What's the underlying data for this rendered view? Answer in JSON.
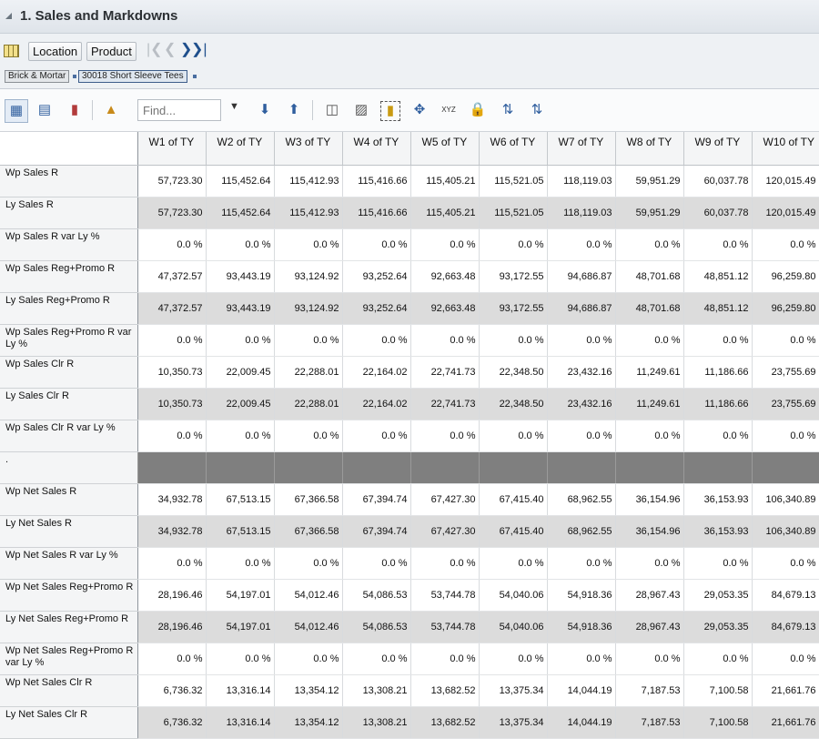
{
  "title": "1. Sales and Markdowns",
  "dimensions": {
    "location_label": "Location",
    "product_label": "Product"
  },
  "breadcrumbs": [
    "Brick & Mortar",
    "30018 Short Sleeve Tees"
  ],
  "find": {
    "placeholder": "Find..."
  },
  "columns": [
    "W1 of TY",
    "W2 of TY",
    "W3 of TY",
    "W4 of TY",
    "W5 of TY",
    "W6 of TY",
    "W7 of TY",
    "W8 of TY",
    "W9 of TY",
    "W10 of TY"
  ],
  "rows": [
    {
      "label": "Wp Sales R",
      "values": [
        "57,723.30",
        "115,452.64",
        "115,412.93",
        "115,416.66",
        "115,405.21",
        "115,521.05",
        "118,119.03",
        "59,951.29",
        "60,037.78",
        "120,015.49"
      ]
    },
    {
      "label": "Ly Sales R",
      "values": [
        "57,723.30",
        "115,452.64",
        "115,412.93",
        "115,416.66",
        "115,405.21",
        "115,521.05",
        "118,119.03",
        "59,951.29",
        "60,037.78",
        "120,015.49"
      ]
    },
    {
      "label": "Wp Sales R var Ly %",
      "values": [
        "0.0 %",
        "0.0 %",
        "0.0 %",
        "0.0 %",
        "0.0 %",
        "0.0 %",
        "0.0 %",
        "0.0 %",
        "0.0 %",
        "0.0 %"
      ]
    },
    {
      "label": "Wp Sales Reg+Promo R",
      "values": [
        "47,372.57",
        "93,443.19",
        "93,124.92",
        "93,252.64",
        "92,663.48",
        "93,172.55",
        "94,686.87",
        "48,701.68",
        "48,851.12",
        "96,259.80"
      ]
    },
    {
      "label": "Ly Sales Reg+Promo R",
      "values": [
        "47,372.57",
        "93,443.19",
        "93,124.92",
        "93,252.64",
        "92,663.48",
        "93,172.55",
        "94,686.87",
        "48,701.68",
        "48,851.12",
        "96,259.80"
      ]
    },
    {
      "label": "Wp Sales Reg+Promo R var Ly %",
      "values": [
        "0.0 %",
        "0.0 %",
        "0.0 %",
        "0.0 %",
        "0.0 %",
        "0.0 %",
        "0.0 %",
        "0.0 %",
        "0.0 %",
        "0.0 %"
      ]
    },
    {
      "label": "Wp Sales Clr R",
      "values": [
        "10,350.73",
        "22,009.45",
        "22,288.01",
        "22,164.02",
        "22,741.73",
        "22,348.50",
        "23,432.16",
        "11,249.61",
        "11,186.66",
        "23,755.69"
      ]
    },
    {
      "label": "Ly Sales Clr R",
      "values": [
        "10,350.73",
        "22,009.45",
        "22,288.01",
        "22,164.02",
        "22,741.73",
        "22,348.50",
        "23,432.16",
        "11,249.61",
        "11,186.66",
        "23,755.69"
      ]
    },
    {
      "label": "Wp Sales Clr R var Ly %",
      "values": [
        "0.0 %",
        "0.0 %",
        "0.0 %",
        "0.0 %",
        "0.0 %",
        "0.0 %",
        "0.0 %",
        "0.0 %",
        "0.0 %",
        "0.0 %"
      ]
    },
    {
      "label": ".",
      "values": [
        "",
        "",
        "",
        "",
        "",
        "",
        "",
        "",
        "",
        ""
      ]
    },
    {
      "label": "Wp Net Sales R",
      "values": [
        "34,932.78",
        "67,513.15",
        "67,366.58",
        "67,394.74",
        "67,427.30",
        "67,415.40",
        "68,962.55",
        "36,154.96",
        "36,153.93",
        "106,340.89"
      ]
    },
    {
      "label": "Ly Net Sales R",
      "values": [
        "34,932.78",
        "67,513.15",
        "67,366.58",
        "67,394.74",
        "67,427.30",
        "67,415.40",
        "68,962.55",
        "36,154.96",
        "36,153.93",
        "106,340.89"
      ]
    },
    {
      "label": "Wp Net Sales R var Ly %",
      "values": [
        "0.0 %",
        "0.0 %",
        "0.0 %",
        "0.0 %",
        "0.0 %",
        "0.0 %",
        "0.0 %",
        "0.0 %",
        "0.0 %",
        "0.0 %"
      ]
    },
    {
      "label": "Wp Net Sales Reg+Promo R",
      "values": [
        "28,196.46",
        "54,197.01",
        "54,012.46",
        "54,086.53",
        "53,744.78",
        "54,040.06",
        "54,918.36",
        "28,967.43",
        "29,053.35",
        "84,679.13"
      ]
    },
    {
      "label": "Ly Net Sales Reg+Promo R",
      "values": [
        "28,196.46",
        "54,197.01",
        "54,012.46",
        "54,086.53",
        "53,744.78",
        "54,040.06",
        "54,918.36",
        "28,967.43",
        "29,053.35",
        "84,679.13"
      ]
    },
    {
      "label": "Wp Net Sales Reg+Promo R var Ly %",
      "values": [
        "0.0 %",
        "0.0 %",
        "0.0 %",
        "0.0 %",
        "0.0 %",
        "0.0 %",
        "0.0 %",
        "0.0 %",
        "0.0 %",
        "0.0 %"
      ]
    },
    {
      "label": "Wp Net Sales Clr R",
      "values": [
        "6,736.32",
        "13,316.14",
        "13,354.12",
        "13,308.21",
        "13,682.52",
        "13,375.34",
        "14,044.19",
        "7,187.53",
        "7,100.58",
        "21,661.76"
      ]
    },
    {
      "label": "Ly Net Sales Clr R",
      "values": [
        "6,736.32",
        "13,316.14",
        "13,354.12",
        "13,308.21",
        "13,682.52",
        "13,375.34",
        "14,044.19",
        "7,187.53",
        "7,100.58",
        "21,661.76"
      ]
    }
  ],
  "colors": {
    "shade_row": "#dcdcdc",
    "separator_row": "#7f7f7f",
    "header_bg": "#f4f5f6",
    "accent": "#2f5e9e"
  }
}
